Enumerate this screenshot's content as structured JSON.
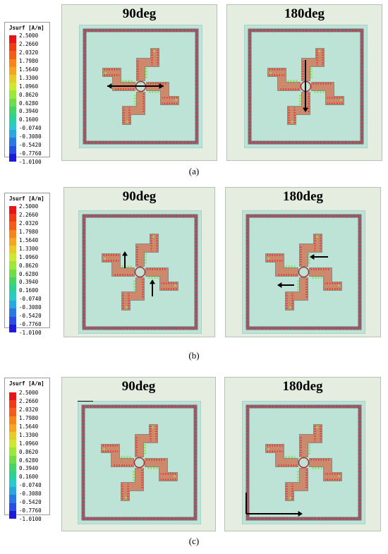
{
  "legend": {
    "title": "Jsurf [A/m]",
    "ticks": [
      "2.5000",
      "2.2660",
      "2.0320",
      "1.7980",
      "1.5640",
      "1.3300",
      "1.0960",
      "0.8620",
      "0.6280",
      "0.3940",
      "0.1600",
      "-0.0740",
      "-0.3080",
      "-0.5420",
      "-0.7760",
      "-1.0100"
    ],
    "colors": [
      "#e5161b",
      "#ef3b17",
      "#f25e19",
      "#f6861c",
      "#f3a624",
      "#e7cc29",
      "#cde832",
      "#9fe63b",
      "#6fdc4a",
      "#46d36a",
      "#2ecf98",
      "#2ec8c8",
      "#2aa7dc",
      "#2a78e0",
      "#2a4ee2",
      "#1f1ad8"
    ]
  },
  "rows": [
    {
      "caption": "(a)",
      "left_title": "90deg",
      "right_title": "180deg"
    },
    {
      "caption": "(b)",
      "left_title": "90deg",
      "right_title": "180deg"
    },
    {
      "caption": "(c)",
      "left_title": "90deg",
      "right_title": "180deg"
    }
  ]
}
